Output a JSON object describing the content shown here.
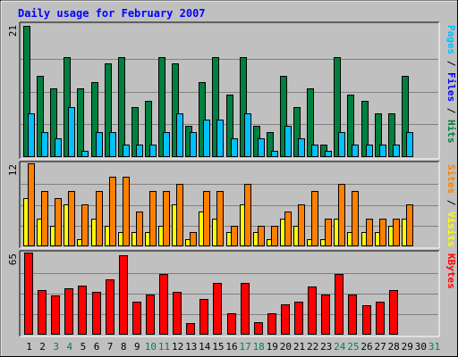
{
  "chart_data": {
    "title": "Daily usage for February 2007",
    "x_labels": [
      "1",
      "2",
      "3",
      "4",
      "5",
      "6",
      "7",
      "8",
      "9",
      "10",
      "11",
      "12",
      "13",
      "14",
      "15",
      "16",
      "17",
      "18",
      "19",
      "20",
      "21",
      "22",
      "23",
      "24",
      "25",
      "26",
      "27",
      "28",
      "29",
      "30",
      "31"
    ],
    "weekend_days": [
      3,
      4,
      10,
      11,
      17,
      18,
      24,
      25,
      31
    ],
    "panels": [
      {
        "type": "bar",
        "ymax_label": "21",
        "ylim": [
          0,
          21
        ],
        "series": [
          {
            "name": "Hits",
            "color": "#008040",
            "values": [
              21,
              13,
              11,
              16,
              11,
              12,
              15,
              16,
              8,
              9,
              16,
              15,
              5,
              12,
              16,
              10,
              16,
              5,
              4,
              13,
              8,
              11,
              2,
              16,
              10,
              9,
              7,
              7,
              13,
              0,
              0
            ]
          },
          {
            "name": "Files",
            "color": "#00c0ff",
            "values": [
              7,
              4,
              3,
              8,
              1,
              4,
              4,
              2,
              2,
              2,
              4,
              7,
              4,
              6,
              6,
              3,
              7,
              3,
              1,
              5,
              3,
              2,
              1,
              4,
              2,
              2,
              2,
              2,
              4,
              0,
              0
            ]
          },
          {
            "name": "Pages",
            "color": "#00c0ff",
            "values": []
          }
        ],
        "legend": [
          {
            "text": "Pages",
            "color": "#00c0ff"
          },
          {
            "text": " / ",
            "color": "#000000"
          },
          {
            "text": "Files",
            "color": "#0000ff"
          },
          {
            "text": " / ",
            "color": "#000000"
          },
          {
            "text": "Hits",
            "color": "#008040"
          }
        ]
      },
      {
        "type": "bar",
        "ymax_label": "12",
        "ylim": [
          0,
          12
        ],
        "series": [
          {
            "name": "Visits",
            "color": "#ffff00",
            "values": [
              7,
              4,
              3,
              6,
              1,
              4,
              3,
              2,
              2,
              2,
              3,
              6,
              1,
              5,
              4,
              2,
              6,
              2,
              1,
              4,
              3,
              1,
              1,
              4,
              2,
              2,
              2,
              3,
              4,
              0,
              0
            ]
          },
          {
            "name": "Sites",
            "color": "#ff8000",
            "values": [
              12,
              8,
              7,
              8,
              6,
              8,
              10,
              10,
              5,
              8,
              8,
              9,
              2,
              8,
              8,
              3,
              9,
              3,
              3,
              5,
              6,
              8,
              4,
              9,
              8,
              4,
              4,
              4,
              6,
              0,
              0
            ]
          }
        ],
        "legend": [
          {
            "text": "Sites",
            "color": "#ff8000"
          },
          {
            "text": " / ",
            "color": "#000000"
          },
          {
            "text": "Visits",
            "color": "#ffff00"
          }
        ]
      },
      {
        "type": "bar",
        "ymax_label": "65",
        "ylim": [
          0,
          65
        ],
        "series": [
          {
            "name": "KBytes",
            "color": "#ff0000",
            "values": [
              65,
              35,
              31,
              37,
              39,
              34,
              44,
              63,
              26,
              32,
              48,
              34,
              9,
              28,
              41,
              17,
              41,
              10,
              17,
              24,
              26,
              38,
              32,
              48,
              32,
              23,
              26,
              35,
              0,
              0,
              0
            ]
          }
        ],
        "legend": [
          {
            "text": "KBytes",
            "color": "#ff0000"
          }
        ]
      }
    ]
  }
}
